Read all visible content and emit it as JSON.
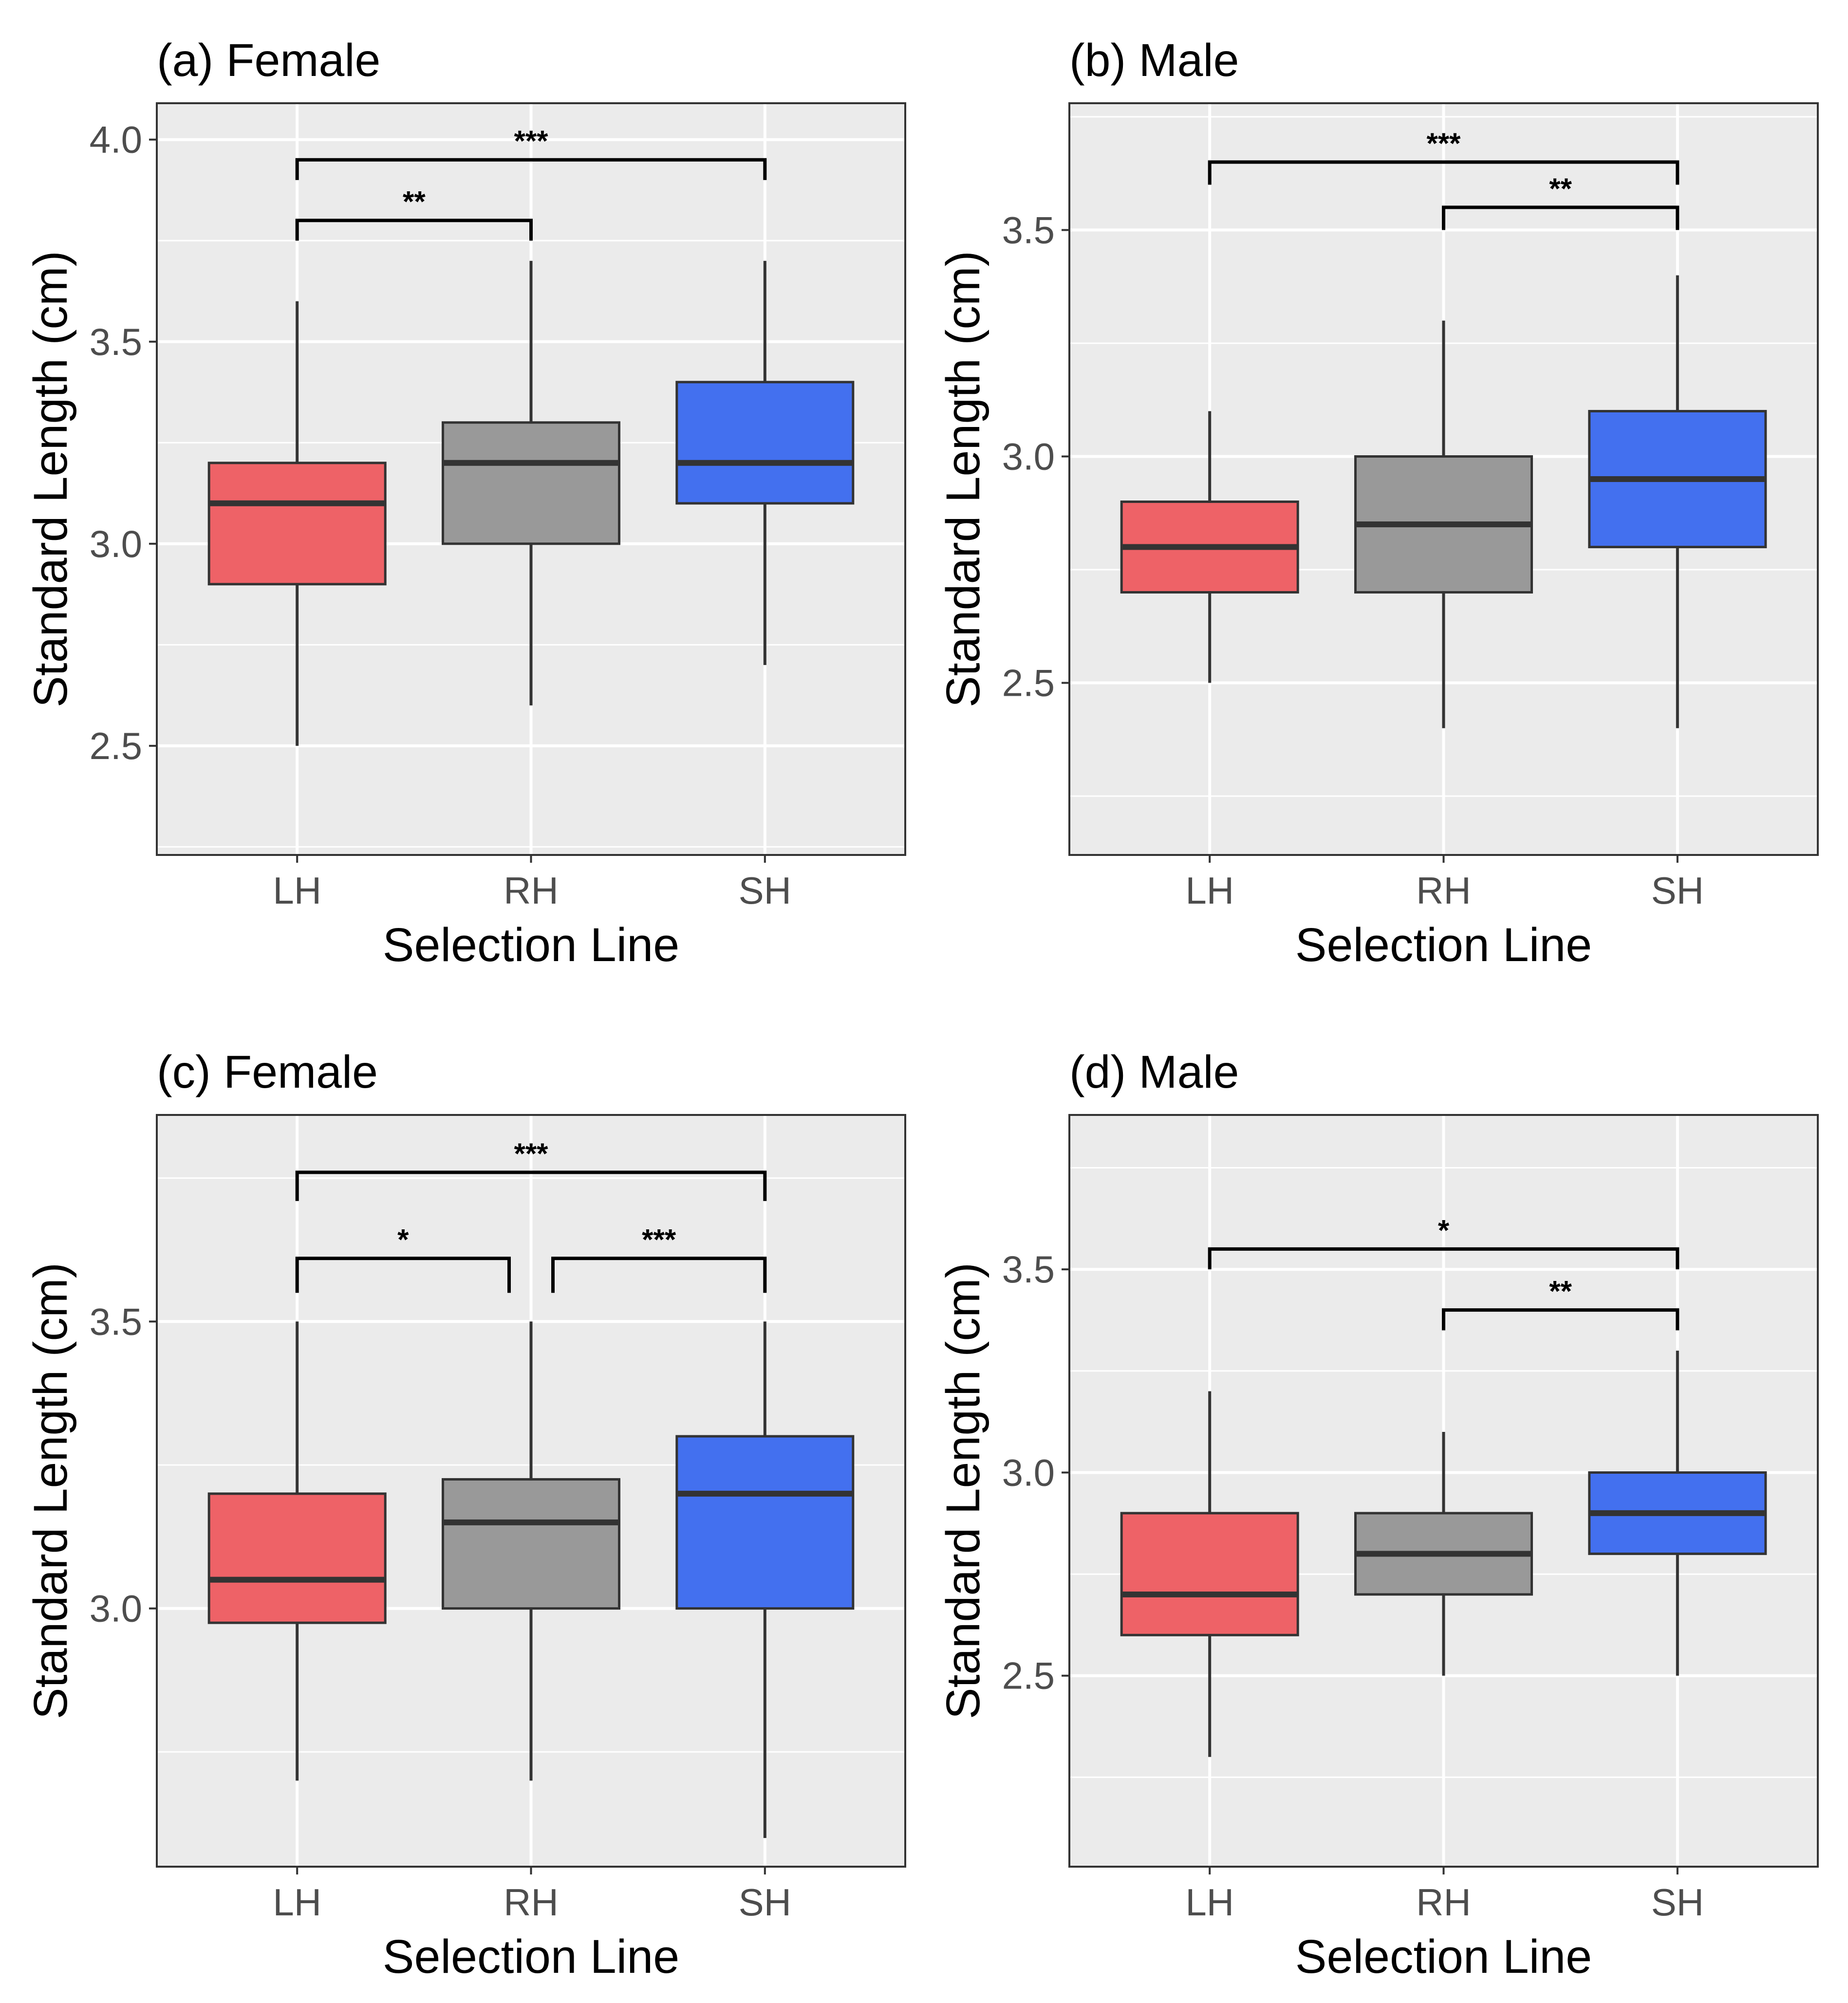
{
  "chart_data": [
    {
      "type": "box",
      "title": "(a) Female",
      "xlabel": "Selection Line",
      "ylabel": "Standard Length (cm)",
      "ylim": [
        2.23,
        4.09
      ],
      "yticks": [
        2.5,
        3.0,
        3.5,
        4.0
      ],
      "ytick_labels": [
        "2.5",
        "3.0",
        "3.5",
        "4.0"
      ],
      "categories": [
        "LH",
        "RH",
        "SH"
      ],
      "boxes": [
        {
          "category": "LH",
          "whisker_low": 2.5,
          "q1": 2.9,
          "median": 3.1,
          "q3": 3.2,
          "whisker_high": 3.6,
          "color": "#ee6267"
        },
        {
          "category": "RH",
          "whisker_low": 2.6,
          "q1": 3.0,
          "median": 3.2,
          "q3": 3.3,
          "whisker_high": 3.7,
          "color": "#999999"
        },
        {
          "category": "SH",
          "whisker_low": 2.7,
          "q1": 3.1,
          "median": 3.2,
          "q3": 3.4,
          "whisker_high": 3.7,
          "color": "#4370ef"
        }
      ],
      "significance": [
        {
          "from": "LH",
          "to": "RH",
          "y": 3.8,
          "tip": 3.75,
          "label": "**"
        },
        {
          "from": "LH",
          "to": "SH",
          "y": 3.95,
          "tip": 3.9,
          "label": "***"
        }
      ]
    },
    {
      "type": "box",
      "title": "(b) Male",
      "xlabel": "Selection Line",
      "ylabel": "Standard Length (cm)",
      "ylim": [
        2.12,
        3.78
      ],
      "yticks": [
        2.5,
        3.0,
        3.5
      ],
      "ytick_labels": [
        "2.5",
        "3.0",
        "3.5"
      ],
      "categories": [
        "LH",
        "RH",
        "SH"
      ],
      "boxes": [
        {
          "category": "LH",
          "whisker_low": 2.5,
          "q1": 2.7,
          "median": 2.8,
          "q3": 2.9,
          "whisker_high": 3.1,
          "color": "#ee6267"
        },
        {
          "category": "RH",
          "whisker_low": 2.4,
          "q1": 2.7,
          "median": 2.85,
          "q3": 3.0,
          "whisker_high": 3.3,
          "color": "#999999"
        },
        {
          "category": "SH",
          "whisker_low": 2.4,
          "q1": 2.8,
          "median": 2.95,
          "q3": 3.1,
          "whisker_high": 3.4,
          "color": "#4370ef"
        }
      ],
      "significance": [
        {
          "from": "RH",
          "to": "SH",
          "y": 3.55,
          "tip": 3.5,
          "label": "**"
        },
        {
          "from": "LH",
          "to": "SH",
          "y": 3.65,
          "tip": 3.6,
          "label": "***"
        }
      ]
    },
    {
      "type": "box",
      "title": "(c) Female",
      "xlabel": "Selection Line",
      "ylabel": "Standard Length (cm)",
      "ylim": [
        2.55,
        3.86
      ],
      "yticks": [
        3.0,
        3.5
      ],
      "ytick_labels": [
        "3.0",
        "3.5"
      ],
      "categories": [
        "LH",
        "RH",
        "SH"
      ],
      "boxes": [
        {
          "category": "LH",
          "whisker_low": 2.7,
          "q1": 2.975,
          "median": 3.05,
          "q3": 3.2,
          "whisker_high": 3.5,
          "color": "#ee6267"
        },
        {
          "category": "RH",
          "whisker_low": 2.7,
          "q1": 3.0,
          "median": 3.15,
          "q3": 3.225,
          "whisker_high": 3.5,
          "color": "#999999"
        },
        {
          "category": "SH",
          "whisker_low": 2.6,
          "q1": 3.0,
          "median": 3.2,
          "q3": 3.3,
          "whisker_high": 3.5,
          "color": "#4370ef"
        }
      ],
      "significance": [
        {
          "from": "LH",
          "to": "RH",
          "y": 3.61,
          "tip": 3.55,
          "label": "*"
        },
        {
          "from": "RH",
          "to": "SH",
          "y": 3.61,
          "tip": 3.55,
          "label": "***"
        },
        {
          "from": "LH",
          "to": "SH",
          "y": 3.76,
          "tip": 3.71,
          "label": "***"
        }
      ]
    },
    {
      "type": "box",
      "title": "(d) Male",
      "xlabel": "Selection Line",
      "ylabel": "Standard Length (cm)",
      "ylim": [
        2.03,
        3.88
      ],
      "yticks": [
        2.5,
        3.0,
        3.5
      ],
      "ytick_labels": [
        "2.5",
        "3.0",
        "3.5"
      ],
      "categories": [
        "LH",
        "RH",
        "SH"
      ],
      "boxes": [
        {
          "category": "LH",
          "whisker_low": 2.3,
          "q1": 2.6,
          "median": 2.7,
          "q3": 2.9,
          "whisker_high": 3.2,
          "color": "#ee6267"
        },
        {
          "category": "RH",
          "whisker_low": 2.5,
          "q1": 2.7,
          "median": 2.8,
          "q3": 2.9,
          "whisker_high": 3.1,
          "color": "#999999"
        },
        {
          "category": "SH",
          "whisker_low": 2.5,
          "q1": 2.8,
          "median": 2.9,
          "q3": 3.0,
          "whisker_high": 3.3,
          "color": "#4370ef"
        }
      ],
      "significance": [
        {
          "from": "RH",
          "to": "SH",
          "y": 3.4,
          "tip": 3.35,
          "label": "**"
        },
        {
          "from": "LH",
          "to": "SH",
          "y": 3.55,
          "tip": 3.5,
          "label": "*"
        }
      ]
    }
  ]
}
